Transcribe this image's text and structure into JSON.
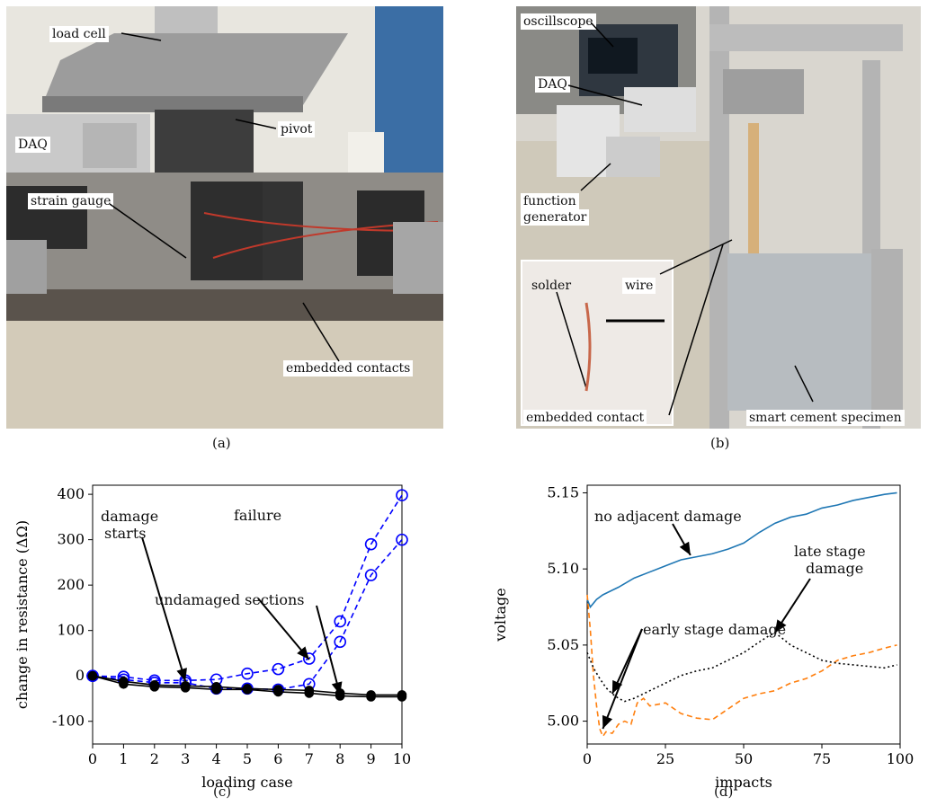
{
  "panel_a": {
    "caption": "(a)",
    "labels": {
      "load_cell": "load cell",
      "pivot": "pivot",
      "daq": "DAQ",
      "strain_gauge": "strain gauge",
      "embedded_contacts": "embedded contacts"
    }
  },
  "panel_b": {
    "caption": "(b)",
    "labels": {
      "oscillscope": "oscillscope",
      "daq": "DAQ",
      "function_generator_1": "function",
      "function_generator_2": "generator",
      "solder": "solder",
      "wire": "wire",
      "embedded_contact": "embedded contact",
      "smart_cement_specimen": "smart cement specimen"
    }
  },
  "panel_c": {
    "caption": "(c)",
    "annotations": {
      "damage_starts_1": "damage",
      "damage_starts_2": "starts",
      "failure": "failure",
      "undamaged_sections": "undamaged sections"
    }
  },
  "panel_d": {
    "caption": "(d)",
    "annotations": {
      "no_adjacent_damage": "no adjacent damage",
      "late_stage_damage_1": "late stage",
      "late_stage_damage_2": "damage",
      "early_stage_damage": "early stage damage"
    }
  },
  "chart_data": [
    {
      "type": "line",
      "xlabel": "loading case",
      "ylabel": "change in resistance (ΔΩ)",
      "xlim": [
        0,
        10
      ],
      "ylim": [
        -150,
        420
      ],
      "xticks": [
        0,
        1,
        2,
        3,
        4,
        5,
        6,
        7,
        8,
        9,
        10
      ],
      "yticks": [
        -100,
        0,
        100,
        200,
        300,
        400
      ],
      "x": [
        0,
        1,
        2,
        3,
        4,
        5,
        6,
        7,
        8,
        9,
        10
      ],
      "series": [
        {
          "values": [
            0,
            -2,
            -10,
            -10,
            -8,
            5,
            15,
            38,
            120,
            290,
            398
          ],
          "color": "#0000ff",
          "style": "dashed",
          "marker": "open-circle"
        },
        {
          "values": [
            0,
            -8,
            -15,
            -15,
            -28,
            -28,
            -30,
            -18,
            75,
            222,
            300
          ],
          "color": "#0000ff",
          "style": "dashed",
          "marker": "open-circle"
        },
        {
          "values": [
            0,
            -12,
            -20,
            -22,
            -24,
            -28,
            -30,
            -32,
            -38,
            -42,
            -42
          ],
          "color": "#000000",
          "style": "solid",
          "marker": "filled-circle"
        },
        {
          "values": [
            0,
            -18,
            -24,
            -26,
            -30,
            -30,
            -35,
            -38,
            -44,
            -46,
            -46
          ],
          "color": "#000000",
          "style": "solid",
          "marker": "filled-circle"
        }
      ]
    },
    {
      "type": "line",
      "xlabel": "impacts",
      "ylabel": "voltage",
      "xlim": [
        0,
        100
      ],
      "ylim": [
        4.985,
        5.155
      ],
      "xticks": [
        0,
        25,
        50,
        75,
        100
      ],
      "yticks": [
        5.0,
        5.05,
        5.1,
        5.15
      ],
      "ytick_labels": [
        "5.00",
        "5.05",
        "5.10",
        "5.15"
      ],
      "series": [
        {
          "color": "#1f77b4",
          "style": "solid",
          "x": [
            0,
            1,
            3,
            5,
            8,
            10,
            15,
            20,
            25,
            30,
            35,
            40,
            45,
            50,
            55,
            60,
            65,
            70,
            75,
            80,
            85,
            90,
            95,
            99
          ],
          "values": [
            5.08,
            5.075,
            5.08,
            5.083,
            5.086,
            5.088,
            5.094,
            5.098,
            5.102,
            5.106,
            5.108,
            5.11,
            5.113,
            5.117,
            5.124,
            5.13,
            5.134,
            5.136,
            5.14,
            5.142,
            5.145,
            5.147,
            5.149,
            5.15
          ]
        },
        {
          "color": "#ff7f0e",
          "style": "dashed",
          "x": [
            0,
            1,
            2,
            3,
            4,
            5,
            6,
            8,
            10,
            12,
            14,
            16,
            18,
            20,
            25,
            30,
            35,
            40,
            45,
            50,
            55,
            60,
            65,
            70,
            75,
            80,
            85,
            90,
            95,
            99
          ],
          "values": [
            5.083,
            5.06,
            5.03,
            5.01,
            4.995,
            4.99,
            4.993,
            4.992,
            4.998,
            5.0,
            4.998,
            5.012,
            5.015,
            5.01,
            5.012,
            5.005,
            5.002,
            5.001,
            5.008,
            5.015,
            5.018,
            5.02,
            5.025,
            5.028,
            5.033,
            5.04,
            5.043,
            5.045,
            5.048,
            5.05
          ]
        },
        {
          "color": "#000000",
          "style": "dotted",
          "x": [
            0,
            2,
            4,
            6,
            8,
            10,
            12,
            15,
            18,
            20,
            25,
            30,
            35,
            40,
            45,
            50,
            55,
            58,
            60,
            62,
            65,
            70,
            75,
            80,
            85,
            90,
            95,
            99
          ],
          "values": [
            5.045,
            5.035,
            5.028,
            5.022,
            5.018,
            5.015,
            5.013,
            5.015,
            5.018,
            5.02,
            5.025,
            5.03,
            5.033,
            5.035,
            5.04,
            5.045,
            5.052,
            5.056,
            5.058,
            5.055,
            5.05,
            5.045,
            5.04,
            5.038,
            5.037,
            5.036,
            5.035,
            5.037
          ]
        }
      ]
    }
  ]
}
